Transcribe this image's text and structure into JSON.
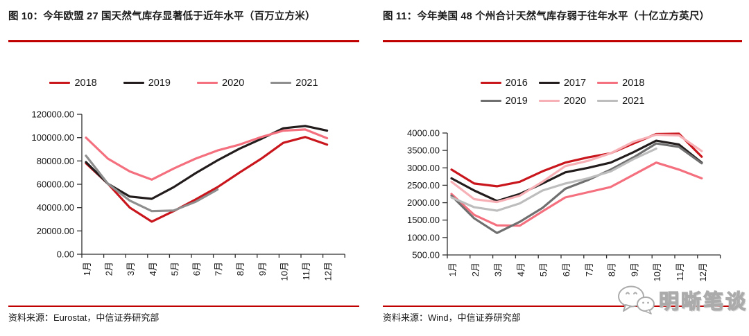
{
  "brand": {
    "rule_red": "#C00000",
    "title_color": "#1a1a1a"
  },
  "figures": [
    {
      "title": "图 10：今年欧盟 27 国天然气库存显著低于近年水平（百万立方米）",
      "source": "资料来源：Eurostat，中信证券研究部",
      "legend_rows": [
        [
          "2018",
          "2019",
          "2020",
          "2021"
        ]
      ]
    },
    {
      "title": "图 11：今年美国 48 个州合计天然气库存弱于往年水平（十亿立方英尺）",
      "source": "资料来源：Wind，中信证券研究部",
      "legend_rows": [
        [
          "2016",
          "2017",
          "2018"
        ],
        [
          "2019",
          "2020",
          "2021"
        ]
      ]
    }
  ],
  "watermark": {
    "text": "明晰笔谈",
    "icon": "wechat-icon"
  },
  "chart_data": [
    {
      "type": "line",
      "title": "图 10：今年欧盟 27 国天然气库存显著低于近年水平（百万立方米）",
      "xlabel": "",
      "ylabel": "百万立方米",
      "categories": [
        "1月",
        "2月",
        "3月",
        "4月",
        "5月",
        "6月",
        "7月",
        "8月",
        "9月",
        "10月",
        "11月",
        "12月"
      ],
      "ylim": [
        0,
        120000
      ],
      "y_ticks": [
        0,
        20000,
        40000,
        60000,
        80000,
        100000,
        120000
      ],
      "y_tick_labels": [
        "0.00",
        "20000.00",
        "40000.00",
        "60000.00",
        "80000.00",
        "100000.00",
        "120000.00"
      ],
      "grid": false,
      "legend_position": "top",
      "series": [
        {
          "name": "2018",
          "color": "#C9161D",
          "values": [
            78000,
            60500,
            40000,
            28000,
            37000,
            47000,
            57500,
            70000,
            82000,
            95500,
            100500,
            94000
          ]
        },
        {
          "name": "2019",
          "color": "#221C1C",
          "values": [
            79000,
            60500,
            49500,
            47500,
            57500,
            69500,
            80500,
            90500,
            99000,
            108000,
            110000,
            106000
          ]
        },
        {
          "name": "2020",
          "color": "#F4707F",
          "values": [
            100000,
            82000,
            71000,
            64000,
            73500,
            82000,
            89000,
            94000,
            100500,
            106000,
            107000,
            99500
          ]
        },
        {
          "name": "2021",
          "color": "#8E8E8E",
          "values": [
            84500,
            60500,
            46000,
            37000,
            37500,
            45000,
            55500,
            null,
            null,
            null,
            null,
            null
          ]
        }
      ]
    },
    {
      "type": "line",
      "title": "图 11：今年美国 48 个州合计天然气库存弱于往年水平（十亿立方英尺）",
      "xlabel": "",
      "ylabel": "十亿立方英尺",
      "categories": [
        "1月",
        "2月",
        "3月",
        "4月",
        "5月",
        "6月",
        "7月",
        "8月",
        "9月",
        "10月",
        "11月",
        "12月"
      ],
      "ylim": [
        500,
        4000
      ],
      "y_ticks": [
        500,
        1000,
        1500,
        2000,
        2500,
        3000,
        3500,
        4000
      ],
      "y_tick_labels": [
        "500.00",
        "1000.00",
        "1500.00",
        "2000.00",
        "2500.00",
        "3000.00",
        "3500.00",
        "4000.00"
      ],
      "grid": false,
      "legend_position": "top",
      "series": [
        {
          "name": "2016",
          "color": "#C9161D",
          "values": [
            2950,
            2550,
            2470,
            2600,
            2900,
            3150,
            3300,
            3420,
            3700,
            3970,
            3980,
            3320
          ]
        },
        {
          "name": "2017",
          "color": "#221C1C",
          "values": [
            2700,
            2350,
            2050,
            2250,
            2550,
            2870,
            3000,
            3150,
            3450,
            3780,
            3670,
            3150
          ]
        },
        {
          "name": "2018",
          "color": "#F4707F",
          "values": [
            2250,
            1650,
            1350,
            1340,
            1750,
            2150,
            2300,
            2450,
            2800,
            3150,
            2950,
            2700
          ]
        },
        {
          "name": "2019",
          "color": "#6F6F6F",
          "values": [
            2200,
            1550,
            1130,
            1450,
            1850,
            2400,
            2650,
            2950,
            3300,
            3700,
            3600,
            3130
          ]
        },
        {
          "name": "2020",
          "color": "#F6B0B6",
          "values": [
            2600,
            2100,
            2020,
            2200,
            2600,
            3050,
            3200,
            3420,
            3750,
            3950,
            3930,
            3480
          ]
        },
        {
          "name": "2021",
          "color": "#BDBDBD",
          "values": [
            2150,
            1870,
            1770,
            1980,
            2350,
            2550,
            2700,
            2900,
            3250,
            3550,
            null,
            null
          ]
        }
      ]
    }
  ]
}
